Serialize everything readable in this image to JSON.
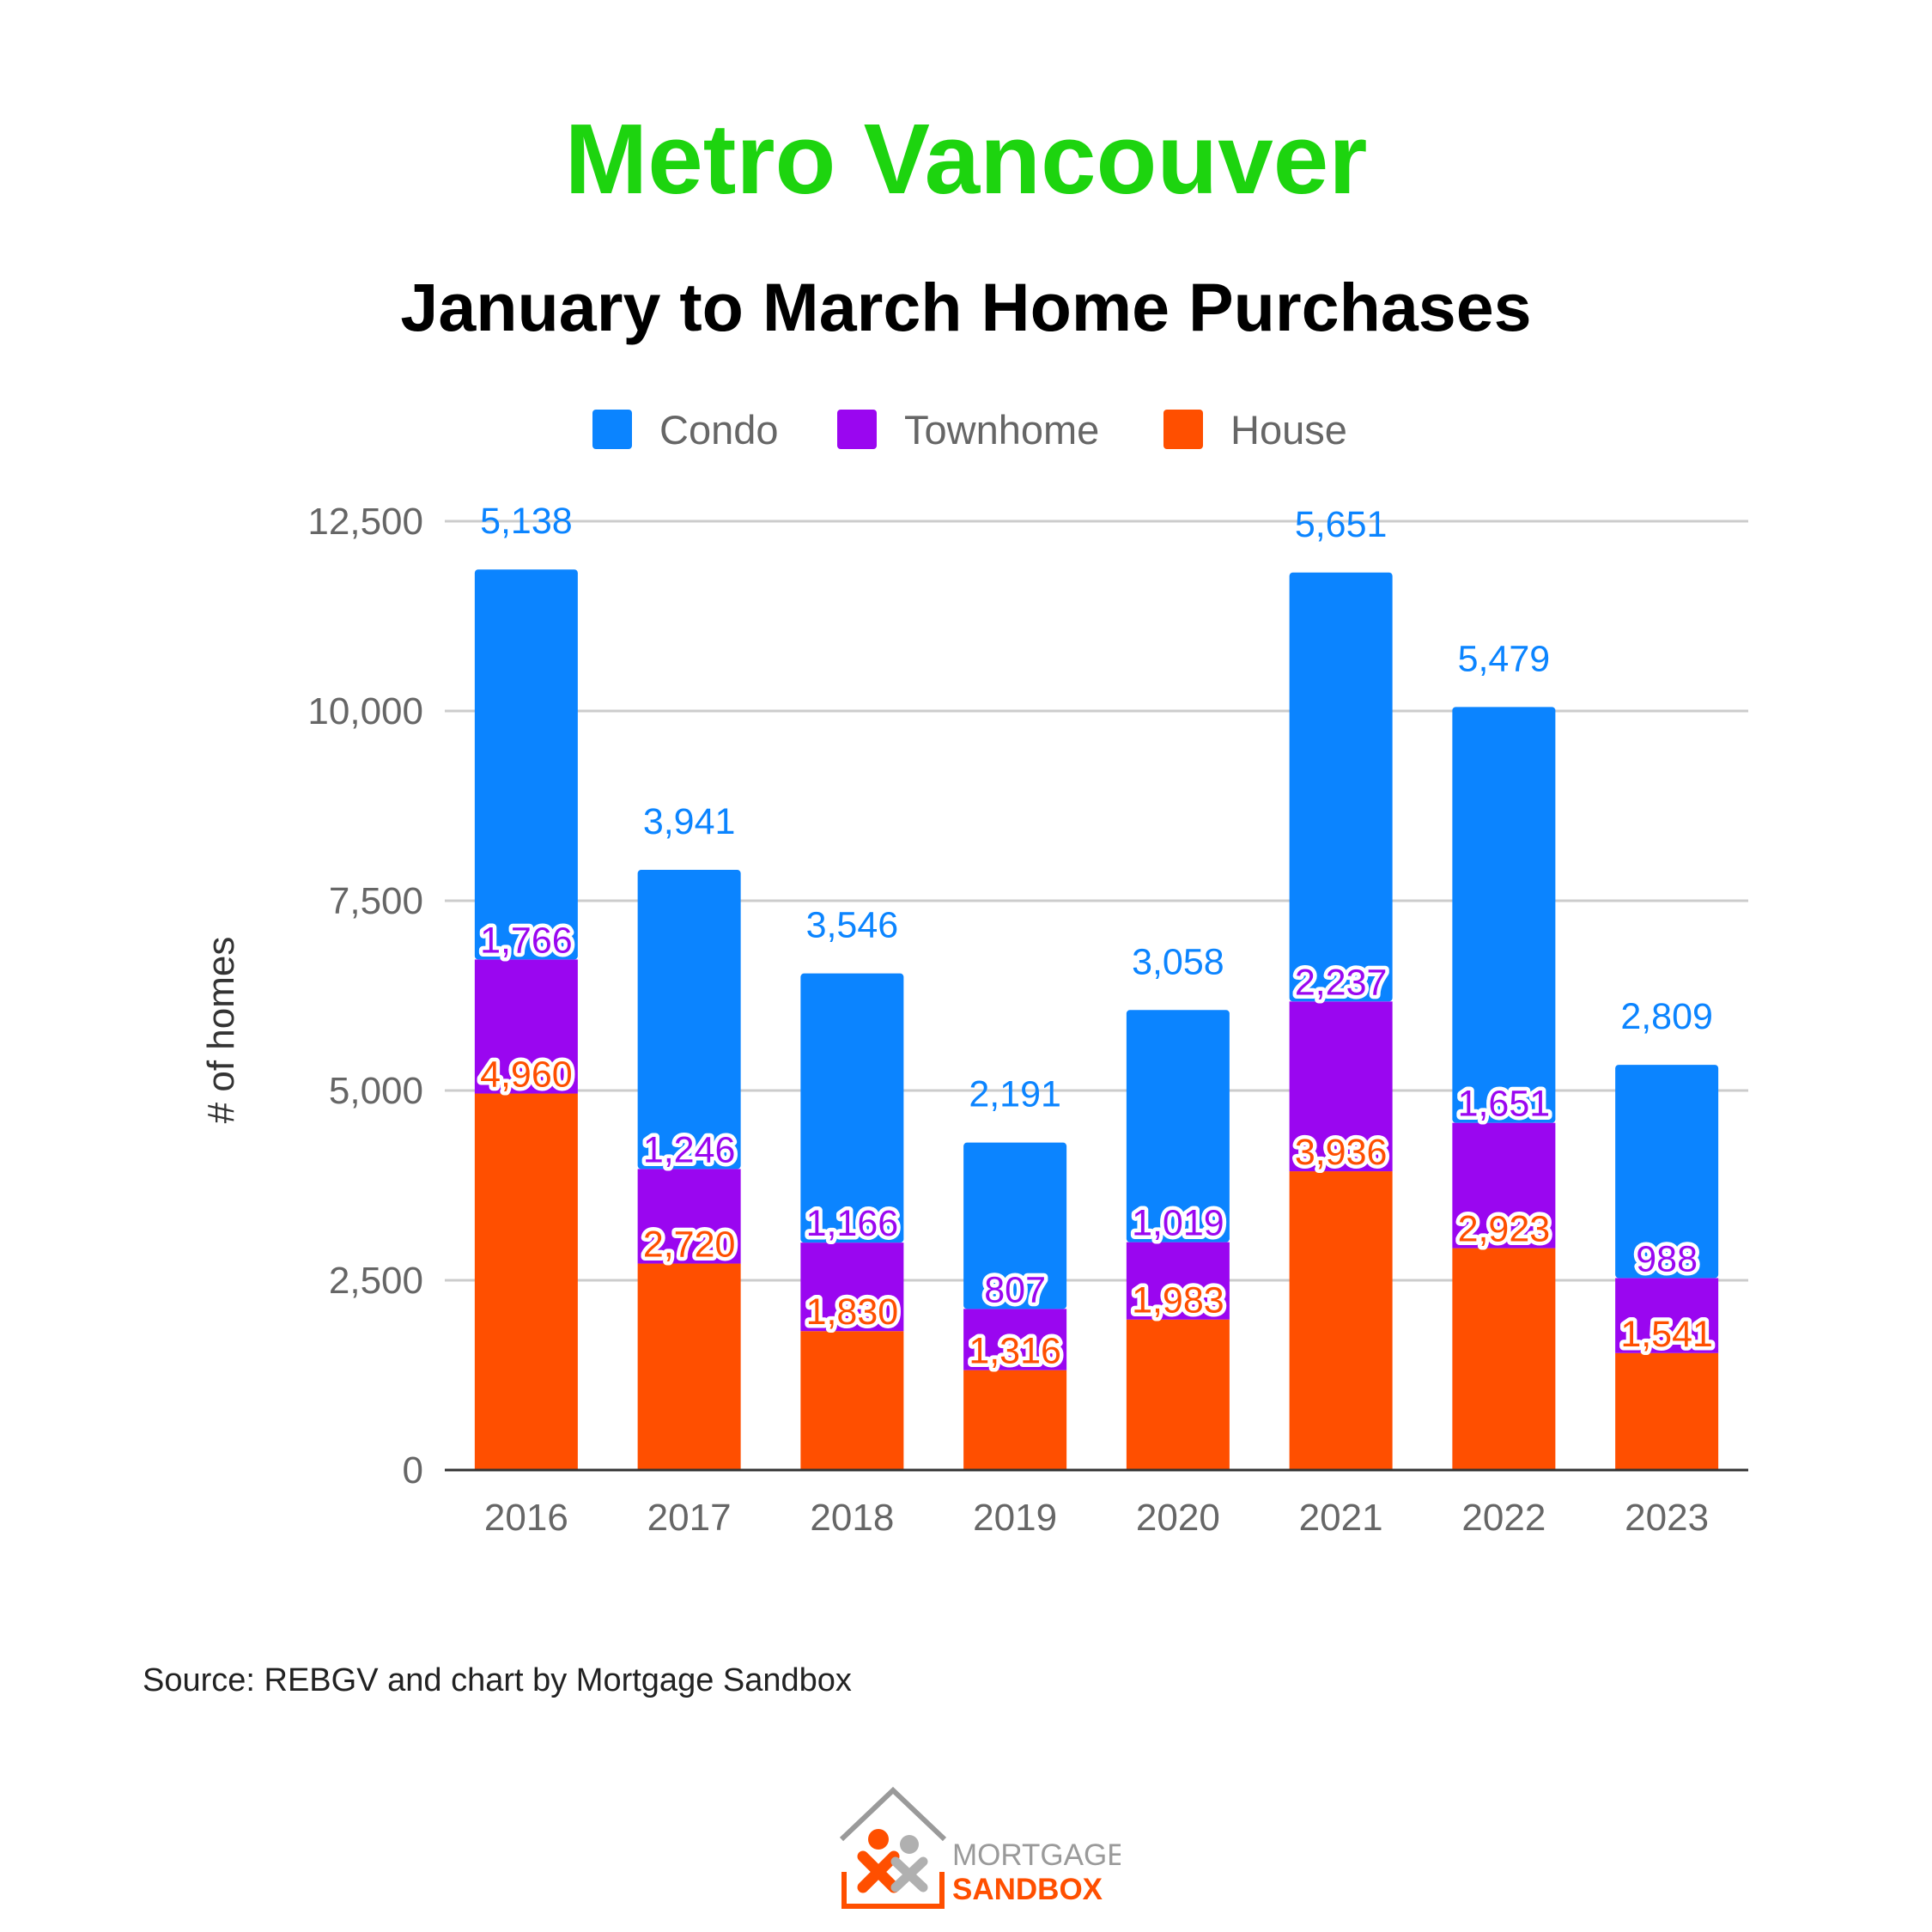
{
  "title": "Metro Vancouver",
  "subtitle": "January to March Home Purchases",
  "source": "Source: REBGV and chart by Mortgage Sandbox",
  "logo": {
    "line1": "MORTGAGE",
    "line2": "SANDBOX"
  },
  "colors": {
    "condo": "#0b84ff",
    "townhome": "#9a06f0",
    "house": "#ff4f00",
    "title": "#1dd40f"
  },
  "chart_data": {
    "type": "bar",
    "stacked": true,
    "categories": [
      "2016",
      "2017",
      "2018",
      "2019",
      "2020",
      "2021",
      "2022",
      "2023"
    ],
    "series": [
      {
        "name": "House",
        "values": [
          4960,
          2720,
          1830,
          1316,
          1983,
          3936,
          2923,
          1541
        ]
      },
      {
        "name": "Townhome",
        "values": [
          1766,
          1246,
          1166,
          807,
          1019,
          2237,
          1651,
          988
        ]
      },
      {
        "name": "Condo",
        "values": [
          5138,
          3941,
          3546,
          2191,
          3058,
          5651,
          5479,
          2809
        ]
      }
    ],
    "ylabel": "# of homes",
    "xlabel": "",
    "ylim": [
      0,
      12500
    ],
    "yticks": [
      0,
      2500,
      5000,
      7500,
      10000,
      12500
    ],
    "ytick_labels": [
      "0",
      "2,500",
      "5,000",
      "7,500",
      "10,000",
      "12,500"
    ],
    "legend_order": [
      "Condo",
      "Townhome",
      "House"
    ],
    "legend_position": "top",
    "grid": true
  }
}
